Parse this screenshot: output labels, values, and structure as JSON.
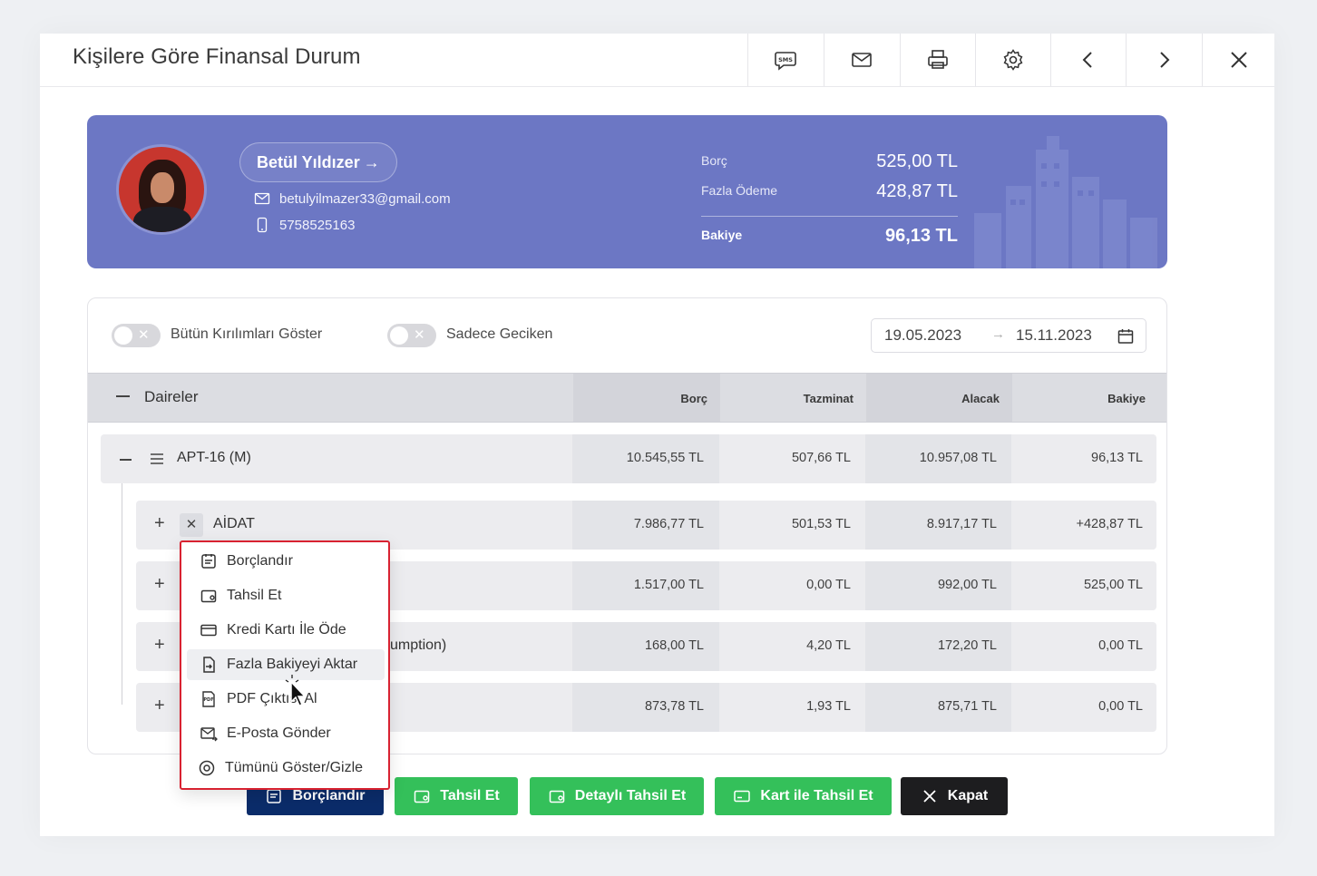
{
  "header": {
    "title": "Kişilere Göre Finansal Durum",
    "buttons": [
      "sms",
      "mail",
      "print",
      "settings",
      "prev",
      "next",
      "close"
    ]
  },
  "profile": {
    "name": "Betül Yıldızer",
    "name_arrow": "→",
    "email": "betulyilmazer33@gmail.com",
    "phone": "5758525163",
    "borc_label": "Borç",
    "borc_value": "525,00 TL",
    "fazla_label": "Fazla Ödeme",
    "fazla_value": "428,87 TL",
    "bakiye_label": "Bakiye",
    "bakiye_value": "96,13 TL"
  },
  "filters": {
    "toggle1_label": "Bütün Kırılımları Göster",
    "toggle2_label": "Sadece Geciken",
    "toggle_x": "✕",
    "date_from": "19.05.2023",
    "date_arrow": "→",
    "date_to": "15.11.2023"
  },
  "table": {
    "group": "Daireler",
    "columns": [
      "Borç",
      "Tazminat",
      "Alacak",
      "Bakiye"
    ],
    "apt": {
      "title": "APT-16 (M)",
      "values": [
        "10.545,55 TL",
        "507,66 TL",
        "10.957,08 TL",
        "96,13 TL"
      ]
    },
    "rows": [
      {
        "title": "AİDAT",
        "values": [
          "7.986,77 TL",
          "501,53 TL",
          "8.917,17 TL",
          "+428,87 TL"
        ]
      },
      {
        "title": "",
        "values": [
          "1.517,00 TL",
          "0,00 TL",
          "992,00 TL",
          "525,00 TL"
        ]
      },
      {
        "title": "umption)",
        "values": [
          "168,00 TL",
          "4,20 TL",
          "172,20 TL",
          "0,00 TL"
        ]
      },
      {
        "title": "",
        "values": [
          "873,78 TL",
          "1,93 TL",
          "875,71 TL",
          "0,00 TL"
        ]
      }
    ],
    "plus": "+",
    "x": "✕"
  },
  "menu": {
    "items": [
      {
        "label": "Borçlandır",
        "icon": "invoice-icon"
      },
      {
        "label": "Tahsil Et",
        "icon": "wallet-icon"
      },
      {
        "label": "Kredi Kartı İle Öde",
        "icon": "credit-card-icon"
      },
      {
        "label": "Fazla Bakiyeyi Aktar",
        "icon": "transfer-icon"
      },
      {
        "label": "PDF Çıktısı Al",
        "icon": "pdf-icon"
      },
      {
        "label": "E-Posta Gönder",
        "icon": "mail-send-icon"
      },
      {
        "label": "Tümünü Göster/Gizle",
        "icon": "eye-icon"
      }
    ],
    "active_index": 3
  },
  "footer": {
    "borclandir": "Borçlandır",
    "tahsil_et": "Tahsil Et",
    "detayli_tahsil": "Detaylı Tahsil Et",
    "kart_tahsil": "Kart ile Tahsil Et",
    "kapat": "Kapat"
  },
  "colors": {
    "profile_bg": "#6c77c4",
    "green": "#34c05a",
    "navy": "#0b2c6a",
    "menu_border": "#d82231"
  }
}
